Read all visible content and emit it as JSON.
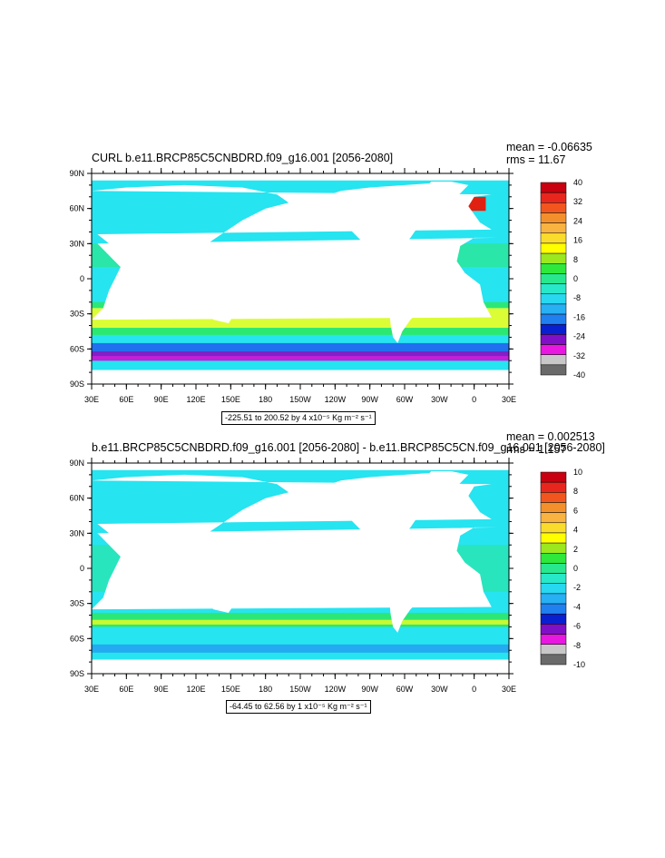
{
  "panels": [
    {
      "title": "CURL b.e11.BRCP85C5CNBDRD.f09_g16.001 [2056-2080]",
      "mean_text": "mean = -0.06635",
      "rms_text": "rms = 11.67",
      "scale_text": "-225.51 to 200.52 by 4 x10⁻⁵ Kg m⁻² s⁻¹",
      "lat_labels": [
        "90N",
        "60N",
        "30N",
        "0",
        "30S",
        "60S",
        "90S"
      ],
      "lon_labels": [
        "30E",
        "60E",
        "90E",
        "120E",
        "150E",
        "180",
        "150W",
        "120W",
        "90W",
        "60W",
        "30W",
        "0",
        "30E"
      ],
      "colorbar_labels": [
        "40",
        "32",
        "24",
        "16",
        "8",
        "0",
        "-8",
        "-16",
        "-24",
        "-32",
        "-40"
      ]
    },
    {
      "title": "b.e11.BRCP85C5CNBDRD.f09_g16.001 [2056-2080] - b.e11.BRCP85C5CN.f09_g16.001 [2056-2080]",
      "mean_text": "mean = 0.002513",
      "rms_text": "rms = 1.157",
      "scale_text": "-64.45 to 62.56 by 1 x10⁻⁵ Kg m⁻² s⁻¹",
      "lat_labels": [
        "90N",
        "60N",
        "30N",
        "0",
        "30S",
        "60S",
        "90S"
      ],
      "lon_labels": [
        "30E",
        "60E",
        "90E",
        "120E",
        "150E",
        "180",
        "150W",
        "120W",
        "90W",
        "60W",
        "30W",
        "0",
        "30E"
      ],
      "colorbar_labels": [
        "10",
        "8",
        "6",
        "4",
        "2",
        "0",
        "-2",
        "-4",
        "-6",
        "-8",
        "-10"
      ]
    }
  ],
  "colorbar_colors": [
    "#c8000f",
    "#e8261e",
    "#f2561e",
    "#f4902b",
    "#f8b340",
    "#fadd2c",
    "#ffff00",
    "#9be81e",
    "#2ee83c",
    "#28e88e",
    "#27e8c8",
    "#27d8f0",
    "#27b0f4",
    "#2080f0",
    "#0820d0",
    "#8010c8",
    "#e818e0",
    "#c8c8c8",
    "#6a6a6a"
  ],
  "ocean_colors": {
    "base": "#26e4f0",
    "green": "#2ee860",
    "yellow": "#f0ff20",
    "orange": "#f4a030",
    "red": "#e02010",
    "blue": "#2070f0",
    "purple": "#8020c8",
    "magenta": "#e020e0",
    "light": "#00ffff"
  }
}
